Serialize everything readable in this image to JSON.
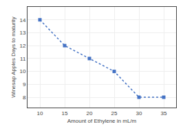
{
  "chart_data": {
    "type": "line",
    "xlabel": "Amount of Ethylene in mL/m",
    "ylabel": "Winesap Apples Days to maturity",
    "x": [
      10,
      15,
      20,
      25,
      30,
      35
    ],
    "values": [
      14,
      12,
      11,
      10,
      8,
      8
    ],
    "color": "#4472C4",
    "line_style": "dotted",
    "marker": "square",
    "xlim": [
      7.5,
      37.5
    ],
    "ylim": [
      7.2,
      15
    ],
    "xticks": [
      10,
      15,
      20,
      25,
      30,
      35
    ],
    "yticks": [
      8,
      9,
      10,
      11,
      12,
      13,
      14
    ],
    "grid": true
  }
}
